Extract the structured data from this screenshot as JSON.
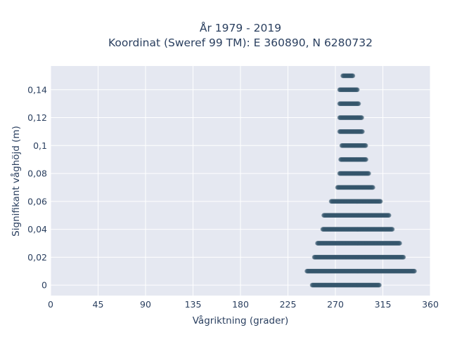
{
  "chart_data": {
    "type": "scatter",
    "title_line1": "År 1979 - 2019",
    "title_line2": "Koordinat (Sweref 99 TM): E 360890, N 6280732",
    "xlabel": "Vågriktning (grader)",
    "ylabel": "Signifikant våghöjd (m)",
    "xlim": [
      0,
      360
    ],
    "ylim": [
      -0.0075,
      0.157
    ],
    "xticks": [
      0,
      45,
      90,
      135,
      180,
      225,
      270,
      315,
      360
    ],
    "xtick_labels": [
      "0",
      "45",
      "90",
      "135",
      "180",
      "225",
      "270",
      "315",
      "360"
    ],
    "yticks": [
      0,
      0.02,
      0.04,
      0.06,
      0.08,
      0.1,
      0.12,
      0.14
    ],
    "ytick_labels": [
      "0",
      "0,02",
      "0,04",
      "0,06",
      "0,08",
      "0,1",
      "0,12",
      "0,14"
    ],
    "grid": true,
    "marker_color": "#34566b",
    "plot_bg": "#e5e8f1",
    "ranges_note_hidden": "",
    "series": [
      {
        "values": [
          {
            "y": 0,
            "x_min": 248,
            "x_max": 312
          },
          {
            "y": 0.01,
            "x_min": 243,
            "x_max": 345
          },
          {
            "y": 0.02,
            "x_min": 250,
            "x_max": 335
          },
          {
            "y": 0.03,
            "x_min": 253,
            "x_max": 331
          },
          {
            "y": 0.04,
            "x_min": 258,
            "x_max": 324
          },
          {
            "y": 0.05,
            "x_min": 259,
            "x_max": 321
          },
          {
            "y": 0.06,
            "x_min": 266,
            "x_max": 313
          },
          {
            "y": 0.07,
            "x_min": 272,
            "x_max": 306
          },
          {
            "y": 0.08,
            "x_min": 274,
            "x_max": 302
          },
          {
            "y": 0.09,
            "x_min": 275,
            "x_max": 299
          },
          {
            "y": 0.1,
            "x_min": 276,
            "x_max": 299
          },
          {
            "y": 0.11,
            "x_min": 274,
            "x_max": 296
          },
          {
            "y": 0.12,
            "x_min": 274,
            "x_max": 295
          },
          {
            "y": 0.13,
            "x_min": 274,
            "x_max": 292
          },
          {
            "y": 0.14,
            "x_min": 274,
            "x_max": 291
          },
          {
            "y": 0.15,
            "x_min": 277,
            "x_max": 287
          }
        ]
      }
    ]
  }
}
